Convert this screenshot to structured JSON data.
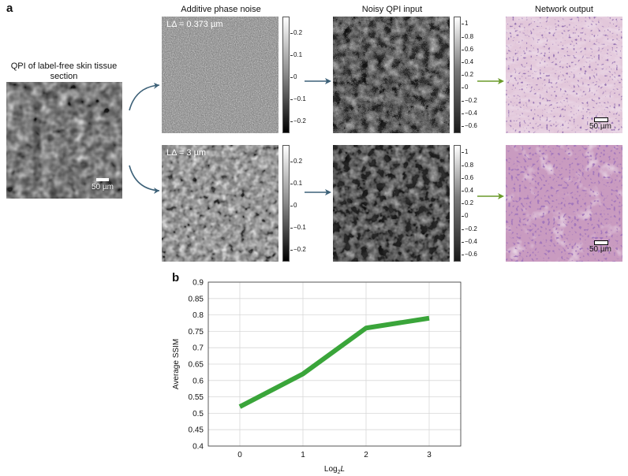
{
  "panel_a": {
    "letter": "a",
    "input_label": "QPI of label-free skin tissue section",
    "input_scalebar": "50 µm",
    "col_noise_title": "Additive phase noise",
    "col_qpi_title": "Noisy QPI input",
    "col_output_title": "Network output",
    "row1_inset": "LΔ = 0.373 µm",
    "row2_inset": "LΔ = 3 µm",
    "row1_output_scalebar": "50 µm",
    "row2_output_scalebar": "50 µm",
    "noise_colorbar_ticks": [
      "0.2",
      "0.1",
      "0",
      "−0.1",
      "−0.2"
    ],
    "qpi_colorbar_ticks": [
      "1",
      "0.8",
      "0.6",
      "0.4",
      "0.2",
      "0",
      "−0.2",
      "−0.4",
      "−0.6"
    ]
  },
  "panel_b": {
    "letter": "b"
  },
  "chart_data": {
    "type": "line",
    "x": [
      0,
      1,
      2,
      3
    ],
    "values": [
      0.52,
      0.62,
      0.76,
      0.79
    ],
    "xlabel": "Log2L",
    "ylabel": "Average SSIM",
    "xticks": [
      "0",
      "1",
      "2",
      "3"
    ],
    "yticks": [
      "0.4",
      "0.45",
      "0.5",
      "0.55",
      "0.6",
      "0.65",
      "0.7",
      "0.75",
      "0.8",
      "0.85",
      "0.9"
    ],
    "xlim": [
      -0.5,
      3.5
    ],
    "ylim": [
      0.4,
      0.9
    ],
    "grid": true,
    "line_color": "#3aa53a"
  },
  "colors": {
    "arrow_blue": "#3d6178",
    "arrow_green": "#6a9a2a",
    "he_pink": "#d7b5cd",
    "he_nuclei": "#4b2a6e"
  }
}
